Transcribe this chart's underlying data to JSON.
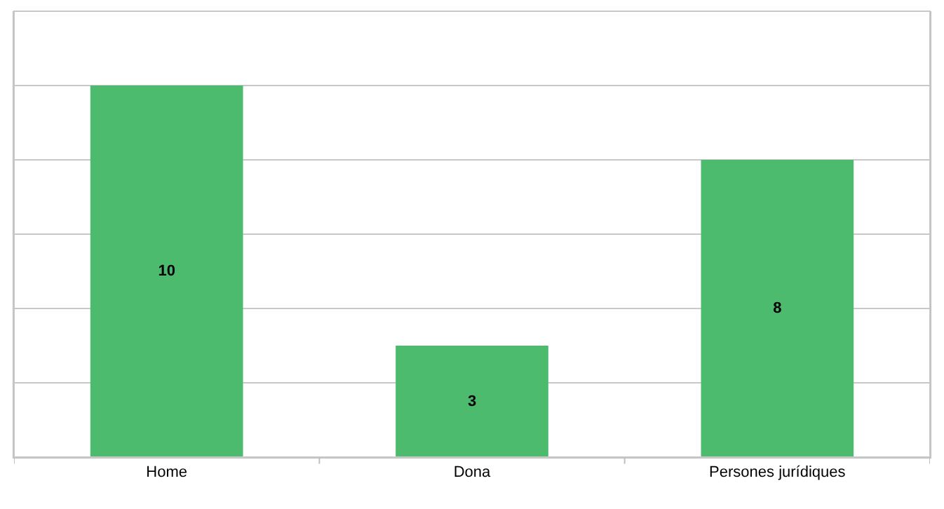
{
  "chart_data": {
    "type": "bar",
    "categories": [
      "Home",
      "Dona",
      "Persones jurídiques"
    ],
    "values": [
      10,
      3,
      8
    ],
    "color": "#4dbb6e",
    "ylim": [
      0,
      12
    ],
    "yticks": [
      {
        "value": 0,
        "label": null
      },
      {
        "value": 2,
        "label": null
      },
      {
        "value": 4,
        "label": null
      },
      {
        "value": 6,
        "label": null
      },
      {
        "value": 8,
        "label": null
      },
      {
        "value": 10,
        "label": null
      }
    ],
    "grid": "y",
    "data_labels": true,
    "tick_labels": "x"
  }
}
